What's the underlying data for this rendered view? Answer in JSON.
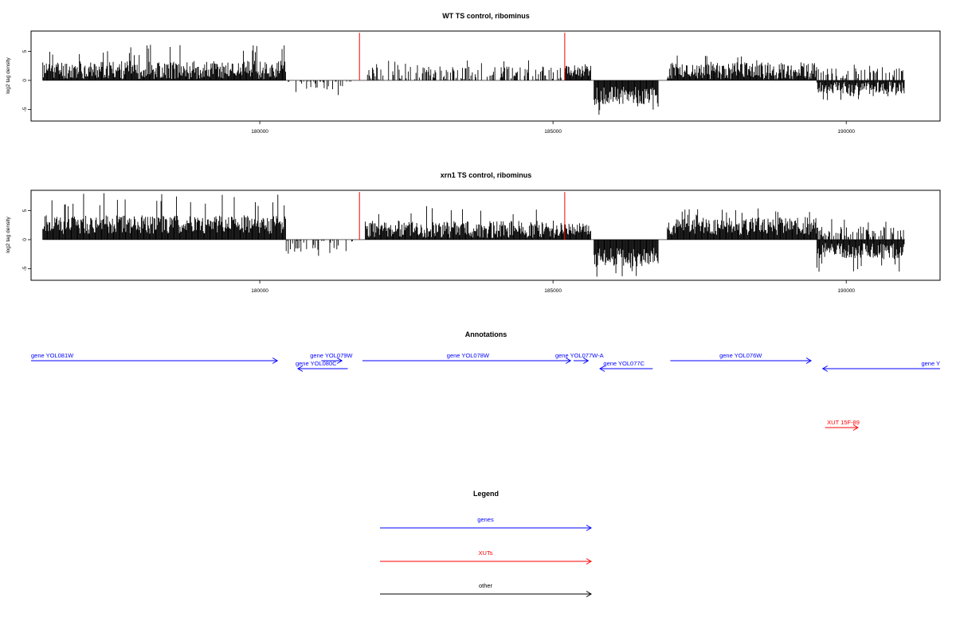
{
  "chart_data": [
    {
      "type": "bar",
      "title": "WT TS control, ribominus",
      "ylabel": "log2 tag density",
      "xlim": [
        176100,
        191600
      ],
      "ylim": [
        -7,
        8.5
      ],
      "x_ticks": [
        180000,
        185000,
        190000
      ],
      "x_tick_labels": [
        "180000",
        "185000",
        "190000"
      ],
      "y_ticks": [
        5,
        0,
        -5
      ],
      "y_tick_labels": [
        "5",
        "0",
        "-5"
      ],
      "grid": false,
      "marker_lines": {
        "color": "#ff0000",
        "x": [
          181700,
          185200
        ],
        "y_top": 8.2
      },
      "segments": [
        {
          "strand": "+",
          "x_start": 176300,
          "x_end": 180450,
          "mean": 1.8,
          "amp": 1.6,
          "max": 6.2,
          "seed": 11
        },
        {
          "strand": "-",
          "x_start": 180450,
          "x_end": 181600,
          "mean": -0.5,
          "amp": 1.2,
          "min": -2.6,
          "seed": 12,
          "sparse": 0.25
        },
        {
          "strand": "+",
          "x_start": 181800,
          "x_end": 185200,
          "mean": 1.2,
          "amp": 1.2,
          "max": 3.5,
          "seed": 13,
          "sparse": 0.45
        },
        {
          "strand": "+",
          "x_start": 185200,
          "x_end": 185650,
          "mean": 1.6,
          "amp": 1.0,
          "max": 3.2,
          "seed": 14
        },
        {
          "strand": "-",
          "x_start": 185700,
          "x_end": 186800,
          "mean": -2.6,
          "amp": 1.5,
          "min": -6.0,
          "seed": 15
        },
        {
          "strand": "+",
          "x_start": 186950,
          "x_end": 189500,
          "mean": 1.6,
          "amp": 1.5,
          "max": 4.3,
          "seed": 16
        },
        {
          "strand": "-",
          "x_start": 189500,
          "x_end": 191000,
          "mean": -1.3,
          "amp": 1.1,
          "min": -3.4,
          "seed": 17
        },
        {
          "strand": "+",
          "x_start": 189500,
          "x_end": 191000,
          "mean": 1.2,
          "amp": 0.9,
          "max": 2.8,
          "seed": 18,
          "sparse": 0.4
        }
      ]
    },
    {
      "type": "bar",
      "title": "xrn1 TS control, ribominus",
      "ylabel": "log2 tag density",
      "xlim": [
        176100,
        191600
      ],
      "ylim": [
        -7,
        8.5
      ],
      "x_ticks": [
        180000,
        185000,
        190000
      ],
      "x_tick_labels": [
        "180000",
        "185000",
        "190000"
      ],
      "y_ticks": [
        5,
        0,
        -5
      ],
      "y_tick_labels": [
        "5",
        "0",
        "-5"
      ],
      "grid": false,
      "marker_lines": {
        "color": "#ff0000",
        "x": [
          181700,
          185200
        ],
        "y_top": 8.2
      },
      "segments": [
        {
          "strand": "+",
          "x_start": 176300,
          "x_end": 180450,
          "mean": 2.6,
          "amp": 1.6,
          "max": 8.2,
          "seed": 21
        },
        {
          "strand": "-",
          "x_start": 180450,
          "x_end": 181600,
          "mean": -0.8,
          "amp": 1.3,
          "min": -3.1,
          "seed": 22,
          "sparse": 0.3
        },
        {
          "strand": "+",
          "x_start": 181800,
          "x_end": 185200,
          "mean": 1.8,
          "amp": 1.5,
          "max": 6.0,
          "seed": 23
        },
        {
          "strand": "+",
          "x_start": 185200,
          "x_end": 185650,
          "mean": 1.8,
          "amp": 1.0,
          "max": 3.8,
          "seed": 24
        },
        {
          "strand": "-",
          "x_start": 185700,
          "x_end": 186800,
          "mean": -3.0,
          "amp": 1.6,
          "min": -6.4,
          "seed": 25
        },
        {
          "strand": "+",
          "x_start": 186950,
          "x_end": 189500,
          "mean": 2.3,
          "amp": 1.5,
          "max": 5.4,
          "seed": 26
        },
        {
          "strand": "-",
          "x_start": 189500,
          "x_end": 191000,
          "mean": -2.0,
          "amp": 1.4,
          "min": -5.6,
          "seed": 27
        },
        {
          "strand": "+",
          "x_start": 189500,
          "x_end": 191000,
          "mean": 1.4,
          "amp": 1.0,
          "max": 3.6,
          "seed": 28,
          "sparse": 0.4
        }
      ]
    },
    {
      "type": "annotation-track",
      "title": "Annotations",
      "xlim": [
        176100,
        191600
      ],
      "features": [
        {
          "label": "gene YOL081W",
          "category": "genes",
          "strand": "+",
          "x_start": 176100,
          "x_end": 180300,
          "row": 0,
          "label_at": 176100
        },
        {
          "label": "gene YOL079W",
          "category": "genes",
          "strand": "+",
          "x_start": 181050,
          "x_end": 181400,
          "row": 0,
          "label_center": 181220
        },
        {
          "label": "gene YOL080C",
          "category": "genes",
          "strand": "-",
          "x_start": 180650,
          "x_end": 181500,
          "row": 1,
          "label_center": 180960
        },
        {
          "label": "gene YOL078W",
          "category": "genes",
          "strand": "+",
          "x_start": 181750,
          "x_end": 185300,
          "row": 0,
          "label_center": 183550
        },
        {
          "label": "gene YOL077W-A",
          "category": "genes",
          "strand": "+",
          "x_start": 185350,
          "x_end": 185600,
          "row": 0,
          "label_center": 185450
        },
        {
          "label": "gene YOL077C",
          "category": "genes",
          "strand": "-",
          "x_start": 185800,
          "x_end": 186700,
          "row": 1,
          "label_center": 186210
        },
        {
          "label": "gene YOL076W",
          "category": "genes",
          "strand": "+",
          "x_start": 187000,
          "x_end": 189400,
          "row": 0,
          "label_center": 188200
        },
        {
          "label": "gene Y",
          "category": "genes",
          "strand": "-",
          "x_start": 189600,
          "x_end": 191600,
          "row": 1,
          "label_at": 191280
        },
        {
          "label": "XUT 15F-89",
          "category": "XUTs",
          "strand": "+",
          "x_start": 189640,
          "x_end": 190200,
          "row": 2,
          "label_center": 189950
        }
      ]
    }
  ],
  "legend": {
    "title": "Legend",
    "items": [
      {
        "label": "genes",
        "color": "#0000ff"
      },
      {
        "label": "XUTs",
        "color": "#ff0000"
      },
      {
        "label": "other",
        "color": "#000000"
      }
    ]
  }
}
